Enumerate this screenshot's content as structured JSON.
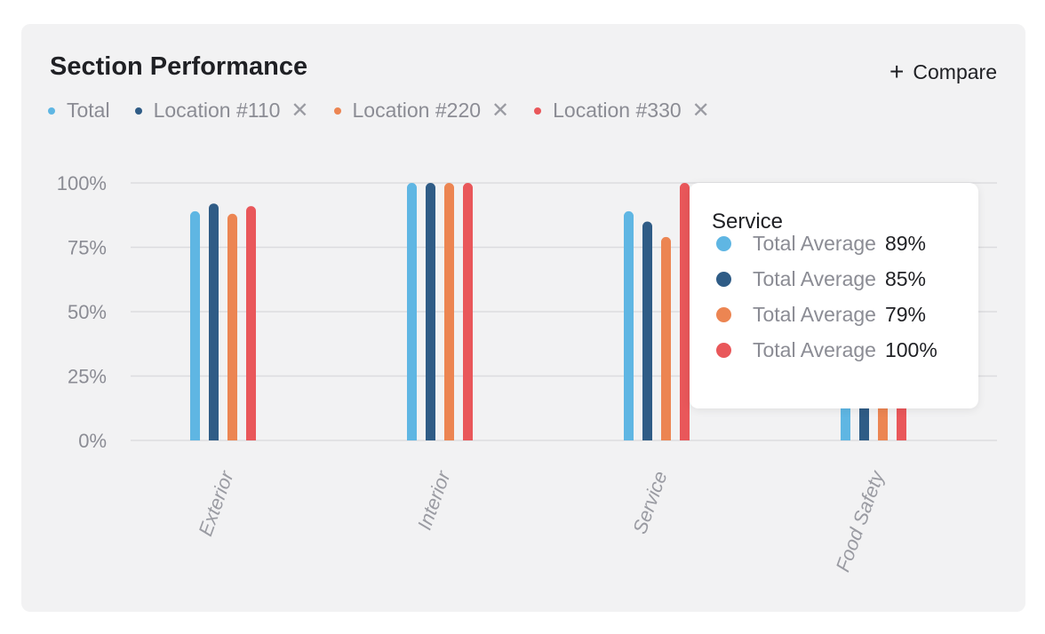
{
  "card": {
    "title": "Section Performance",
    "compare_label": "Compare",
    "compare_icon": "plus-icon"
  },
  "legend": [
    {
      "label": "Total",
      "color": "#5fb6e3",
      "removable": false
    },
    {
      "label": "Location #110",
      "color": "#2f5c86",
      "removable": true
    },
    {
      "label": "Location #220",
      "color": "#ec8552",
      "removable": true
    },
    {
      "label": "Location #330",
      "color": "#e9575a",
      "removable": true
    }
  ],
  "legend_close_glyph": "✕",
  "chart_data": {
    "type": "bar",
    "title": "Section Performance",
    "categories": [
      "Exterior",
      "Interior",
      "Service",
      "Food Safety"
    ],
    "series": [
      {
        "name": "Total",
        "color": "#5fb6e3",
        "values": [
          89,
          100,
          89,
          100
        ]
      },
      {
        "name": "Location #110",
        "color": "#2f5c86",
        "values": [
          92,
          100,
          85,
          100
        ]
      },
      {
        "name": "Location #220",
        "color": "#ec8552",
        "values": [
          88,
          100,
          79,
          100
        ]
      },
      {
        "name": "Location #330",
        "color": "#e9575a",
        "values": [
          91,
          100,
          100,
          100
        ]
      }
    ],
    "ylim": [
      0,
      100
    ],
    "yticks": [
      "0%",
      "25%",
      "50%",
      "75%",
      "100%"
    ],
    "ytick_values": [
      0,
      25,
      50,
      75,
      100
    ],
    "grid": true,
    "legend_position": "top-left"
  },
  "tooltip": {
    "title": "Service",
    "rows": [
      {
        "label": "Total Average",
        "value": "89%",
        "color": "#5fb6e3"
      },
      {
        "label": "Total Average",
        "value": "85%",
        "color": "#2f5c86"
      },
      {
        "label": "Total Average",
        "value": "79%",
        "color": "#ec8552"
      },
      {
        "label": "Total Average",
        "value": "100%",
        "color": "#e9575a"
      }
    ]
  }
}
